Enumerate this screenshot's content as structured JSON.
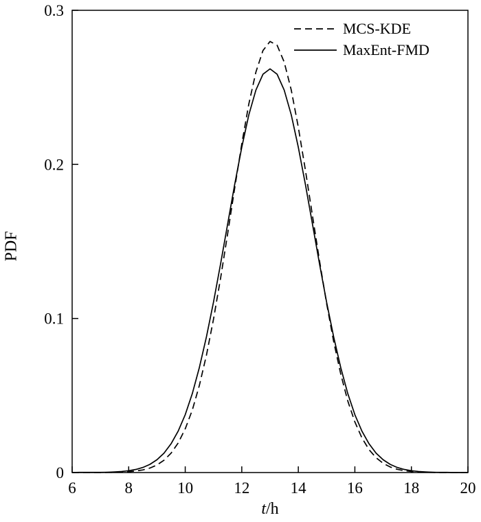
{
  "chart_data": {
    "type": "line",
    "title": "",
    "xlabel": "t/h",
    "xlabel_parts": {
      "italic": "t",
      "rest": "/h"
    },
    "ylabel": "PDF",
    "xlim": [
      6,
      20
    ],
    "ylim": [
      0,
      0.3
    ],
    "grid": false,
    "legend_position": "top-right",
    "axis_color": "#000000",
    "xticks": [
      6,
      8,
      10,
      12,
      14,
      16,
      18,
      20
    ],
    "xtick_labels": [
      "6",
      "8",
      "10",
      "12",
      "14",
      "16",
      "18",
      "20"
    ],
    "yticks": [
      0,
      0.1,
      0.2,
      0.3
    ],
    "ytick_labels": [
      "0",
      "0.1",
      "0.2",
      "0.3"
    ],
    "x": [
      6,
      6.25,
      6.5,
      6.75,
      7,
      7.25,
      7.5,
      7.75,
      8,
      8.25,
      8.5,
      8.75,
      9,
      9.25,
      9.5,
      9.75,
      10,
      10.25,
      10.5,
      10.75,
      11,
      11.25,
      11.5,
      11.75,
      12,
      12.25,
      12.5,
      12.75,
      13,
      13.25,
      13.5,
      13.75,
      14,
      14.25,
      14.5,
      14.75,
      15,
      15.25,
      15.5,
      15.75,
      16,
      16.25,
      16.5,
      16.75,
      17,
      17.25,
      17.5,
      17.75,
      18,
      18.25,
      18.5,
      18.75,
      19,
      19.25,
      19.5,
      19.75,
      20
    ],
    "series": [
      {
        "name": "MCS-KDE",
        "line_style": "dashed",
        "color": "#000000",
        "peak_x": 13.0,
        "peak_y": 0.28,
        "values": [
          0,
          0,
          0,
          0,
          0,
          0.0001,
          0.0001,
          0.0003,
          0.0005,
          0.001,
          0.0017,
          0.0029,
          0.0049,
          0.008,
          0.0126,
          0.0192,
          0.0284,
          0.0406,
          0.0565,
          0.0761,
          0.0995,
          0.1261,
          0.155,
          0.1847,
          0.2134,
          0.2392,
          0.2599,
          0.2739,
          0.2798,
          0.2773,
          0.2664,
          0.2482,
          0.2242,
          0.1964,
          0.1668,
          0.1374,
          0.1098,
          0.085,
          0.0639,
          0.0465,
          0.0329,
          0.0225,
          0.0149,
          0.0096,
          0.006,
          0.0036,
          0.0021,
          0.0012,
          0.0007,
          0.0004,
          0.0002,
          0.0001,
          0,
          0,
          0,
          0,
          0
        ]
      },
      {
        "name": "MaxEnt-FMD",
        "line_style": "solid",
        "color": "#000000",
        "peak_x": 13.0,
        "peak_y": 0.262,
        "values": [
          0,
          0.0001,
          0.0001,
          0.0001,
          0.0001,
          0.0002,
          0.0004,
          0.0007,
          0.0012,
          0.002,
          0.0033,
          0.0053,
          0.0083,
          0.0126,
          0.0187,
          0.0269,
          0.0376,
          0.0513,
          0.0681,
          0.088,
          0.1106,
          0.1354,
          0.1613,
          0.1871,
          0.2112,
          0.2321,
          0.2482,
          0.2585,
          0.262,
          0.2585,
          0.2482,
          0.2321,
          0.2112,
          0.1871,
          0.1613,
          0.1354,
          0.1106,
          0.088,
          0.0681,
          0.0513,
          0.0376,
          0.0269,
          0.0187,
          0.0126,
          0.0083,
          0.0053,
          0.0033,
          0.002,
          0.0012,
          0.0007,
          0.0004,
          0.0002,
          0.0001,
          0.0001,
          0,
          0,
          0
        ]
      }
    ]
  }
}
